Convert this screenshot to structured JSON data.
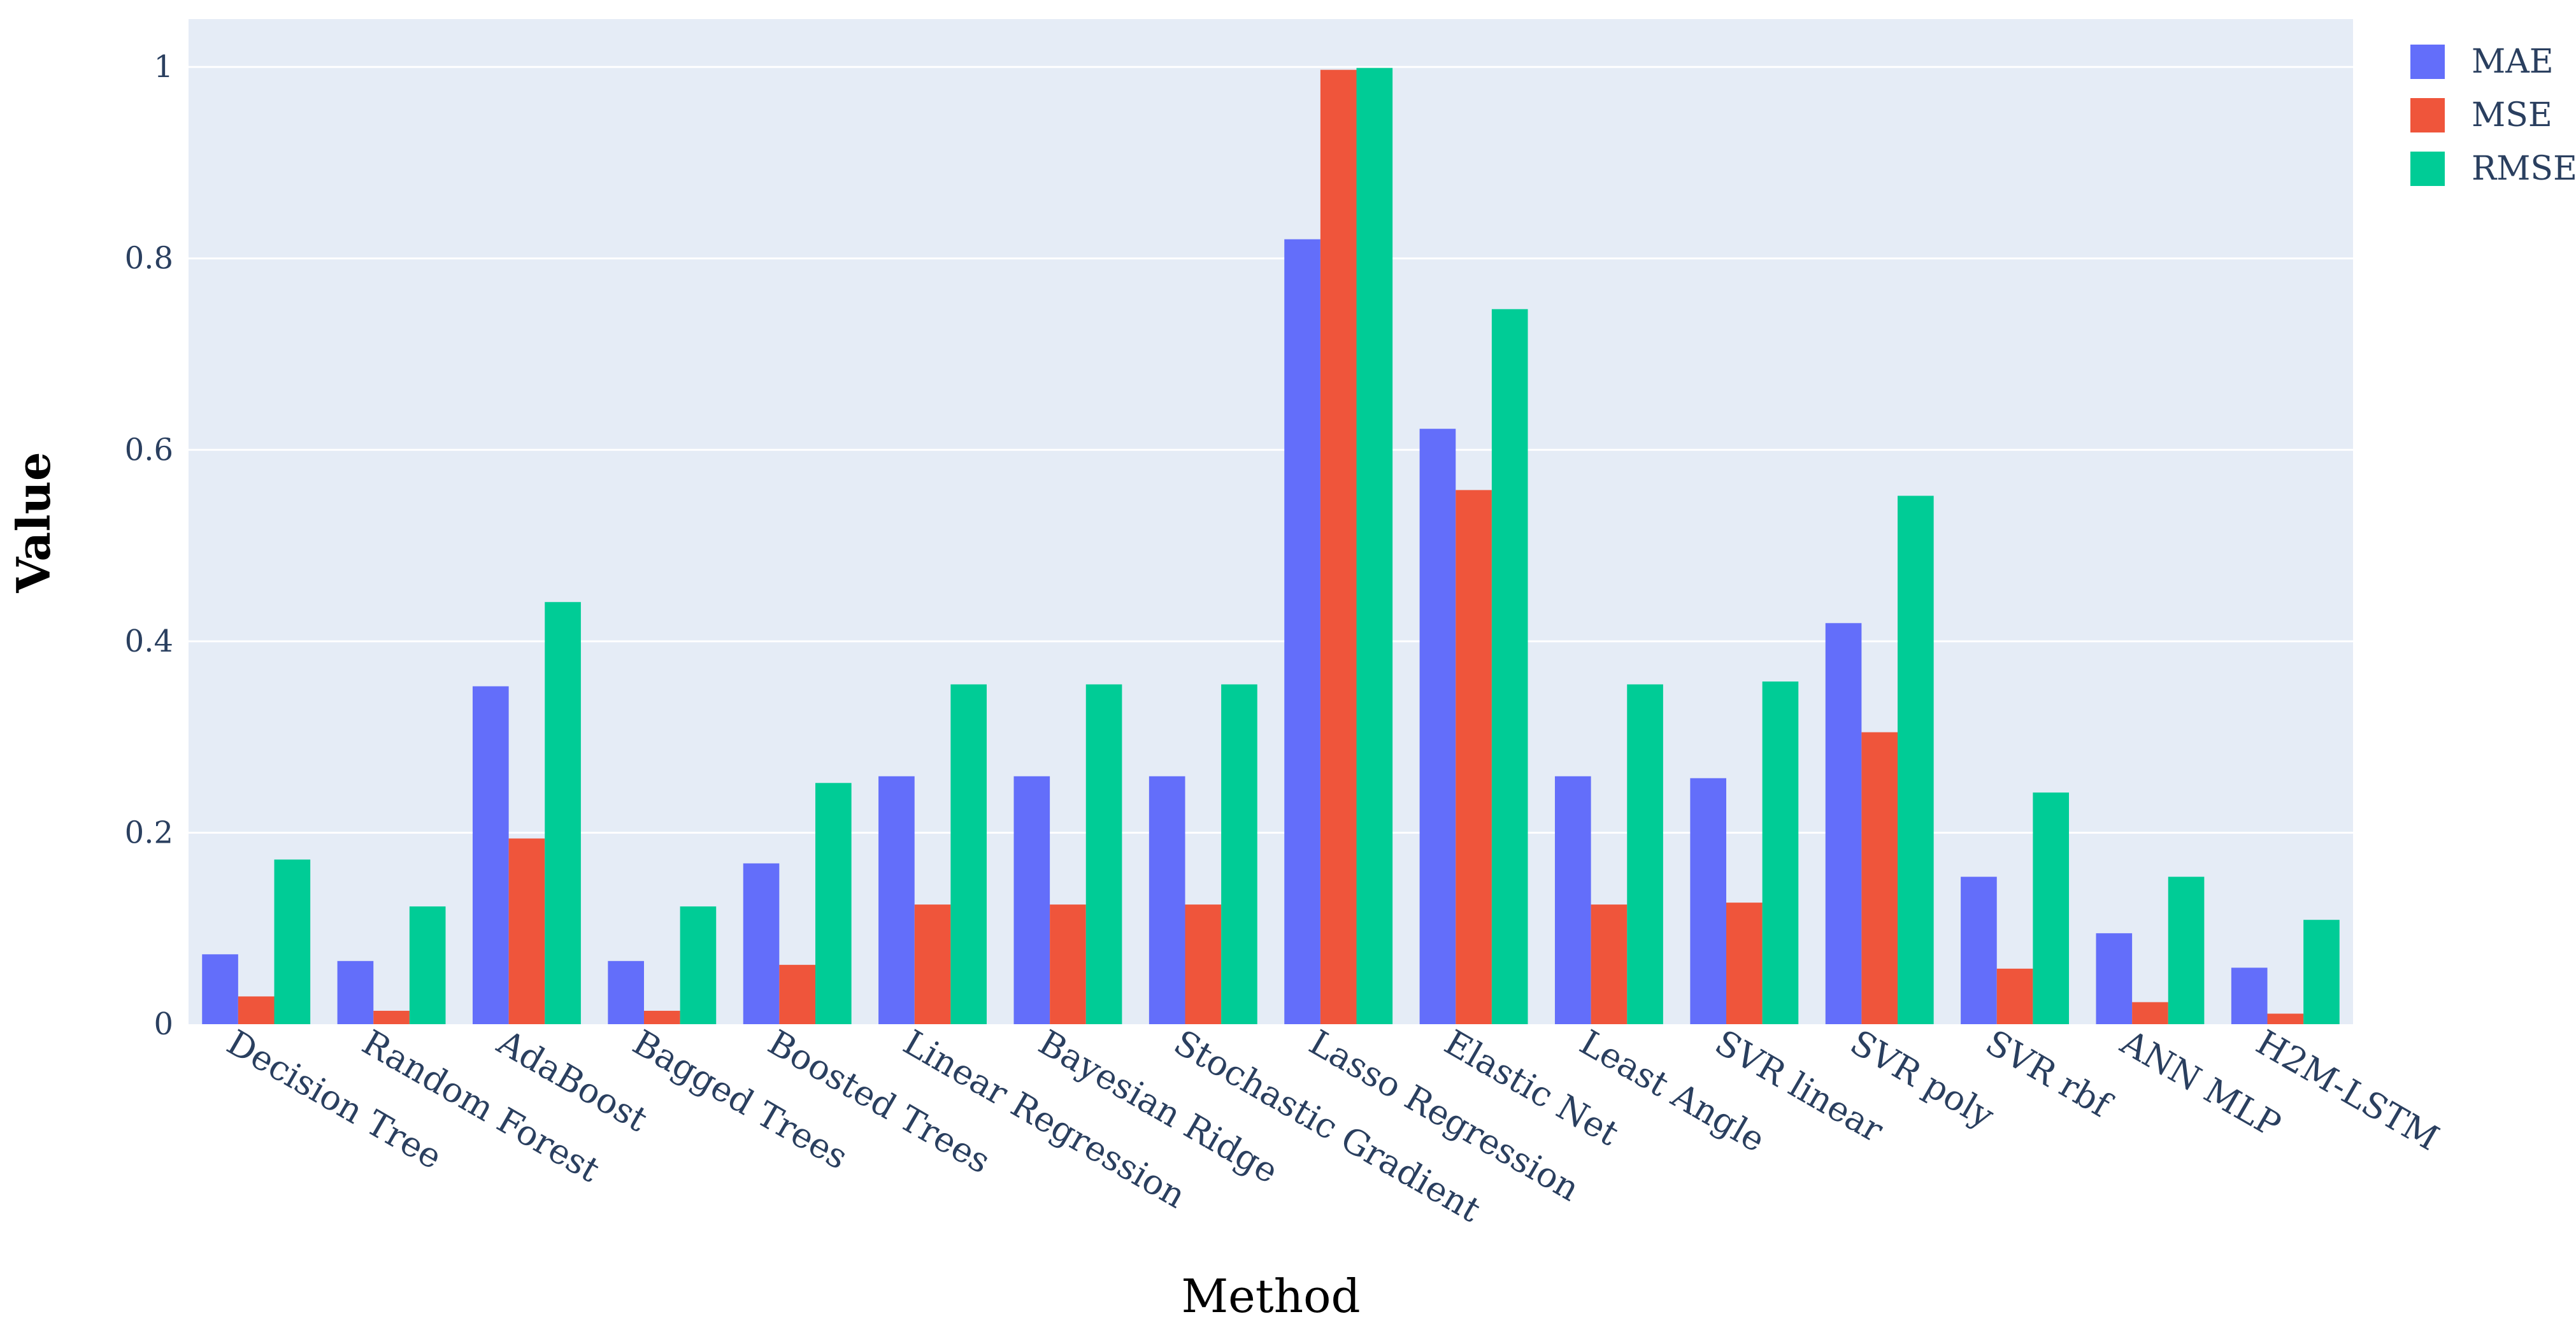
{
  "chart_data": {
    "type": "bar",
    "title": "",
    "xlabel": "Method",
    "ylabel": "Value",
    "ylim": [
      0,
      1.05
    ],
    "yticks": [
      0,
      0.2,
      0.4,
      0.6,
      0.8,
      1
    ],
    "ytick_labels": [
      "0",
      "0.2",
      "0.4",
      "0.6",
      "0.8",
      "1"
    ],
    "grid": true,
    "legend_position": "top-right",
    "categories": [
      "Decision Tree",
      "Random Forest",
      "AdaBoost",
      "Bagged Trees",
      "Boosted Trees",
      "Linear Regression",
      "Bayesian Ridge",
      "Stochastic Gradient",
      "Lasso Regression",
      "Elastic Net",
      "Least Angle",
      "SVR linear",
      "SVR poly",
      "SVR rbf",
      "ANN MLP",
      "H2M-LSTM"
    ],
    "series": [
      {
        "name": "MAE",
        "color": "#636efa",
        "values": [
          0.073,
          0.066,
          0.353,
          0.066,
          0.168,
          0.259,
          0.259,
          0.259,
          0.82,
          0.622,
          0.259,
          0.257,
          0.419,
          0.154,
          0.095,
          0.059
        ]
      },
      {
        "name": "MSE",
        "color": "#ef553b",
        "values": [
          0.029,
          0.014,
          0.194,
          0.014,
          0.062,
          0.125,
          0.125,
          0.125,
          0.997,
          0.558,
          0.125,
          0.127,
          0.305,
          0.058,
          0.023,
          0.011
        ]
      },
      {
        "name": "RMSE",
        "color": "#00cc96",
        "values": [
          0.172,
          0.123,
          0.441,
          0.123,
          0.252,
          0.355,
          0.355,
          0.355,
          0.999,
          0.747,
          0.355,
          0.358,
          0.552,
          0.242,
          0.154,
          0.109
        ]
      }
    ],
    "background_color": "#e5ecf6",
    "grid_color": "#ffffff"
  }
}
